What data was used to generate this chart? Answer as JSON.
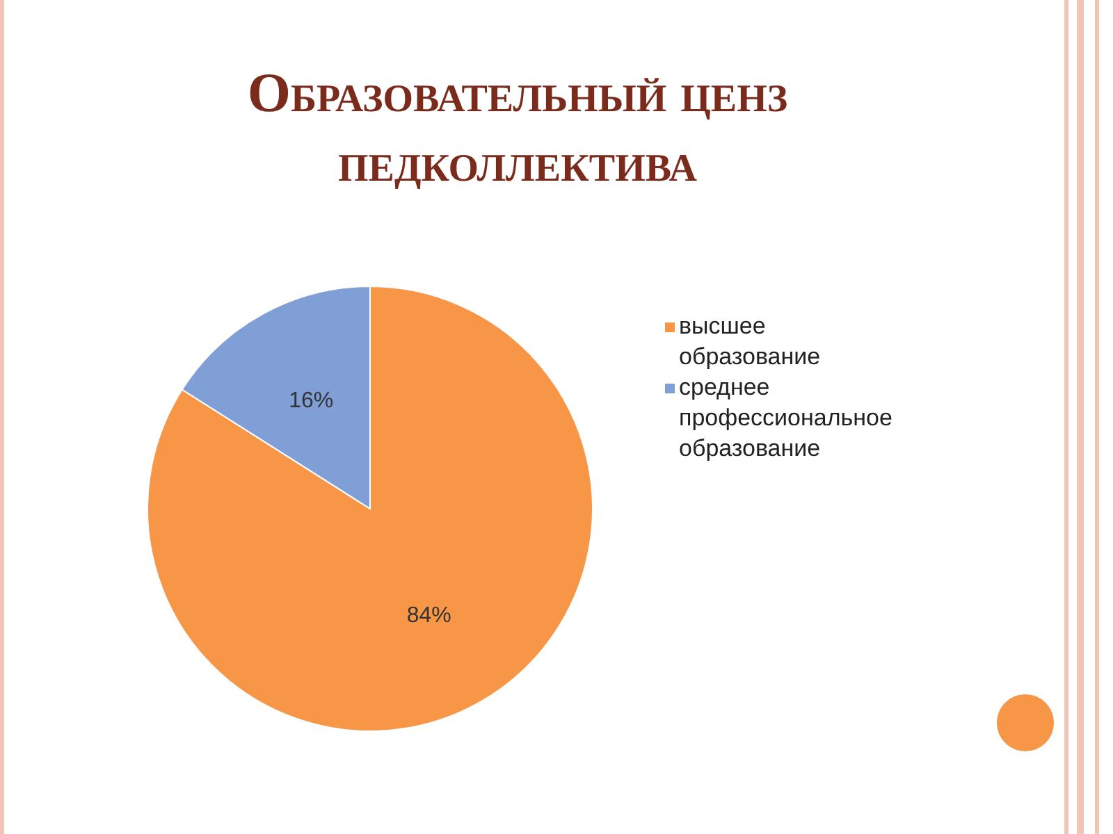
{
  "chart_data": {
    "type": "pie",
    "title": "Образовательный ценз педколлектива",
    "categories": [
      "высшее образование",
      "среднее профессиональное образование"
    ],
    "values": [
      84,
      16
    ],
    "colors": [
      "#f79646",
      "#7f9fd6"
    ],
    "value_labels": [
      "84%",
      "16%"
    ],
    "legend": "right"
  }
}
